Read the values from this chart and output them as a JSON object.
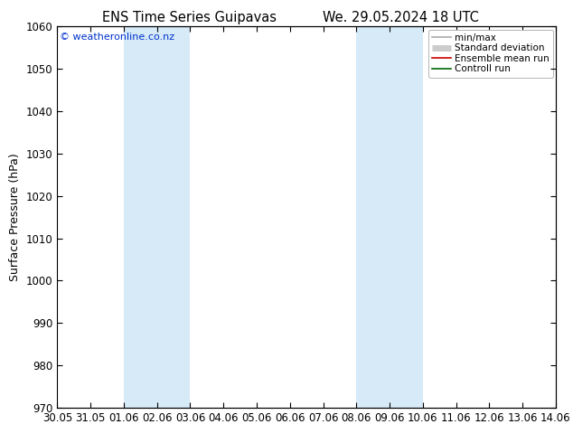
{
  "title_left": "ENS Time Series Guipavas",
  "title_right": "We. 29.05.2024 18 UTC",
  "ylabel": "Surface Pressure (hPa)",
  "ylim": [
    970,
    1060
  ],
  "yticks": [
    970,
    980,
    990,
    1000,
    1010,
    1020,
    1030,
    1040,
    1050,
    1060
  ],
  "xtick_labels": [
    "30.05",
    "31.05",
    "01.06",
    "02.06",
    "03.06",
    "04.06",
    "05.06",
    "06.06",
    "07.06",
    "08.06",
    "09.06",
    "10.06",
    "11.06",
    "12.06",
    "13.06",
    "14.06"
  ],
  "xtick_positions": [
    0,
    1,
    2,
    3,
    4,
    5,
    6,
    7,
    8,
    9,
    10,
    11,
    12,
    13,
    14,
    15
  ],
  "shade_bands": [
    {
      "xstart": 2,
      "xend": 4
    },
    {
      "xstart": 9,
      "xend": 11
    }
  ],
  "shade_color": "#d6eaf8",
  "background_color": "#ffffff",
  "watermark": "© weatheronline.co.nz",
  "legend_entries": [
    {
      "label": "min/max",
      "color": "#aaaaaa",
      "lw": 1.2
    },
    {
      "label": "Standard deviation",
      "color": "#cccccc",
      "lw": 5
    },
    {
      "label": "Ensemble mean run",
      "color": "#cc0000",
      "lw": 1.2
    },
    {
      "label": "Controll run",
      "color": "#006600",
      "lw": 1.2
    }
  ],
  "title_fontsize": 10.5,
  "ylabel_fontsize": 9,
  "tick_fontsize": 8.5,
  "watermark_fontsize": 8
}
